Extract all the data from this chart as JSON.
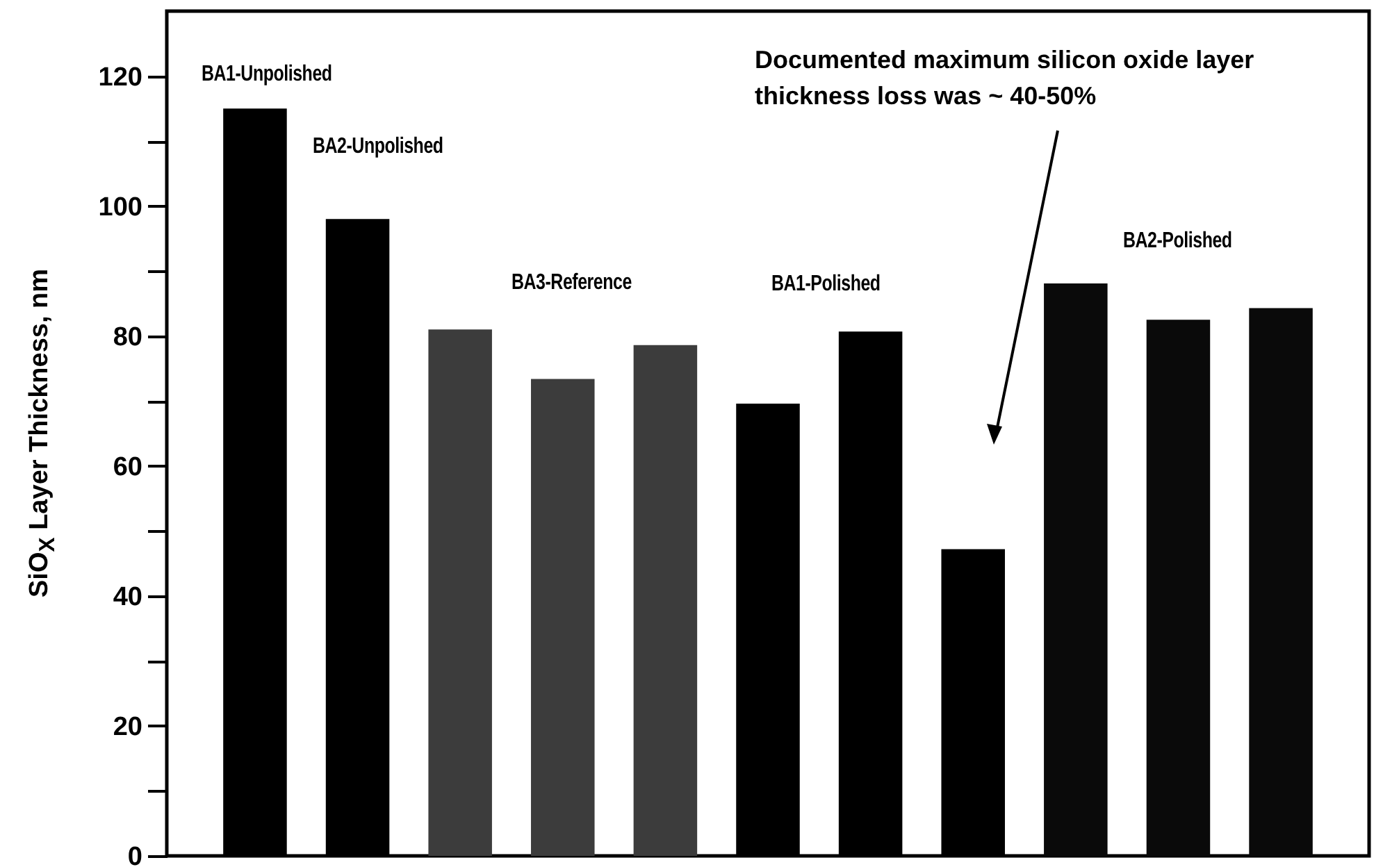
{
  "chart_data": {
    "type": "bar",
    "ylabel": "SiO$_{X}$ Layer Thickness, nm",
    "categories": [
      null,
      null,
      null,
      null,
      null,
      null,
      null,
      null,
      null,
      null,
      null
    ],
    "values": [
      115,
      98,
      81,
      73.4,
      78.6,
      69.6,
      80.7,
      47.2,
      88.1,
      82.5,
      84.3
    ],
    "colors": [
      "#000000",
      "#000000",
      "#3c3c3c",
      "#3c3c3c",
      "#3c3c3c",
      "#000000",
      "#000000",
      "#000000",
      "#0a0a0a",
      "#0a0a0a",
      "#0a0a0a"
    ],
    "ylim": [
      0,
      130
    ],
    "yticks": [
      0,
      {
        "value": 10,
        "label": null
      },
      20,
      {
        "value": 30,
        "label": null
      },
      40,
      {
        "value": 50,
        "label": null
      },
      60,
      {
        "value": 70,
        "label": null
      },
      80,
      {
        "value": 90,
        "label": null
      },
      100,
      {
        "value": 110,
        "label": null
      },
      120
    ],
    "annotations": [
      "BA1-Unpolished",
      "BA2-Unpolished",
      "BA3-Reference",
      "BA1-Polished",
      "BA2-Polished",
      "Documented maximum silicon oxide layer thickness loss was ~ 40-50%"
    ],
    "grid": false
  }
}
